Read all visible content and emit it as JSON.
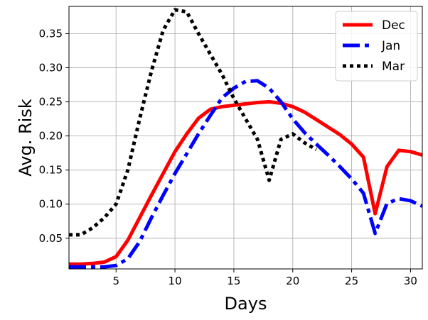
{
  "chart_data": {
    "type": "line",
    "xlabel": "Days",
    "ylabel": "Avg. Risk",
    "xlim": [
      1,
      31
    ],
    "ylim": [
      0.005,
      0.39
    ],
    "xticks": [
      5,
      10,
      15,
      20,
      25,
      30
    ],
    "yticks": [
      0.05,
      0.1,
      0.15,
      0.2,
      0.25,
      0.3,
      0.35
    ],
    "ytick_labels": [
      "0.05",
      "0.10",
      "0.15",
      "0.20",
      "0.25",
      "0.30",
      "0.35"
    ],
    "grid": true,
    "legend": "top-right",
    "series": [
      {
        "name": "Dec",
        "color": "#ff0000",
        "style": "solid",
        "x": [
          1,
          2,
          3,
          4,
          5,
          6,
          7,
          8,
          9,
          10,
          11,
          12,
          13,
          14,
          15,
          16,
          17,
          18,
          19,
          20,
          21,
          22,
          23,
          24,
          25,
          26,
          27,
          28,
          29,
          30,
          31
        ],
        "y": [
          0.012,
          0.012,
          0.013,
          0.015,
          0.023,
          0.047,
          0.08,
          0.113,
          0.145,
          0.177,
          0.203,
          0.226,
          0.239,
          0.243,
          0.245,
          0.247,
          0.249,
          0.25,
          0.248,
          0.243,
          0.235,
          0.224,
          0.213,
          0.202,
          0.188,
          0.169,
          0.086,
          0.155,
          0.179,
          0.177,
          0.172
        ]
      },
      {
        "name": "Jan",
        "color": "#0000ff",
        "style": "dashdot",
        "x": [
          1,
          2,
          3,
          4,
          5,
          6,
          7,
          8,
          9,
          10,
          11,
          12,
          13,
          14,
          15,
          16,
          17,
          18,
          19,
          20,
          21,
          22,
          23,
          24,
          25,
          26,
          27,
          28,
          29,
          30,
          31
        ],
        "y": [
          0.008,
          0.008,
          0.008,
          0.008,
          0.01,
          0.02,
          0.045,
          0.08,
          0.113,
          0.145,
          0.174,
          0.203,
          0.23,
          0.256,
          0.27,
          0.28,
          0.281,
          0.27,
          0.25,
          0.225,
          0.205,
          0.188,
          0.172,
          0.155,
          0.137,
          0.116,
          0.057,
          0.101,
          0.108,
          0.105,
          0.097
        ]
      },
      {
        "name": "Mar",
        "color": "#000000",
        "style": "dotted",
        "x": [
          1,
          2,
          3,
          4,
          5,
          6,
          7,
          8,
          9,
          10,
          11,
          12,
          13,
          14,
          15,
          16,
          17,
          18,
          19,
          20,
          21,
          22
        ],
        "y": [
          0.055,
          0.055,
          0.065,
          0.08,
          0.1,
          0.15,
          0.225,
          0.295,
          0.355,
          0.385,
          0.382,
          0.35,
          0.32,
          0.29,
          0.255,
          0.225,
          0.195,
          0.135,
          0.195,
          0.203,
          0.19,
          0.18
        ]
      }
    ]
  }
}
